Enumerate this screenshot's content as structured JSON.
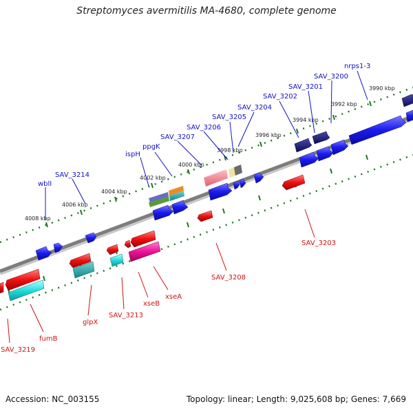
{
  "title": "Streptomyces avermitilis MA-4680, complete genome",
  "accession": "Accession: NC_003155",
  "summary": "Topology: linear; Length: 9,025,608 bp; Genes: 7,669",
  "ruler_labels": [
    "4008 kbp",
    "4006 kbp",
    "4004 kbp",
    "4002 kbp",
    "4000 kbp",
    "3998 kbp",
    "3996 kbp",
    "3994 kbp",
    "3992 kbp",
    "3990 kbp"
  ],
  "top_gene_labels": [
    "wblI",
    "SAV_3214",
    "ispH",
    "ppgK",
    "SAV_3207",
    "SAV_3206",
    "SAV_3205",
    "SAV_3204",
    "SAV_3202",
    "SAV_3201",
    "SAV_3200",
    "nrps1-3"
  ],
  "bottom_gene_labels": [
    "SAV_3219",
    "fumB",
    "glpX",
    "SAV_3213",
    "xseB",
    "xseA",
    "SAV_3208",
    "SAV_3203"
  ],
  "colors": {
    "forward_gene": "#1a1aee",
    "reverse_gene": "#ee1111",
    "axis": "#808080",
    "ruler": "#1a7a1a",
    "label_blue": "#1010c8",
    "label_red": "#d01010"
  }
}
